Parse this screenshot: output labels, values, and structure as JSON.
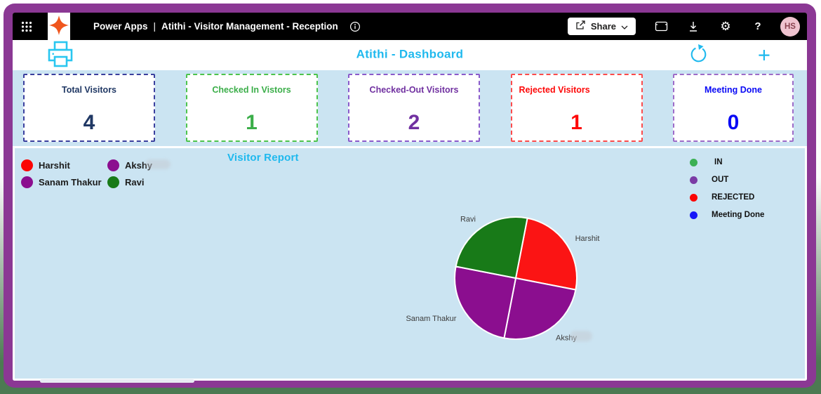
{
  "titlebar": {
    "brand": "Power Apps",
    "divider": "|",
    "app_name": "Atithi - Visitor Management - Reception",
    "share_label": "Share",
    "avatar_initials": "HS",
    "gear_glyph": "⚙",
    "help_glyph": "?"
  },
  "header": {
    "title": "Atithi - Dashboard",
    "plus_glyph": "+"
  },
  "stat_cards": [
    {
      "label": "Total Visitors",
      "value": "4",
      "color": "#203864",
      "border": "#3A3F9E",
      "align": "center"
    },
    {
      "label": "Checked In Vistors",
      "value": "1",
      "color": "#3BAE49",
      "border": "#4DC44D",
      "align": "center"
    },
    {
      "label": "Checked-Out Visitors",
      "value": "2",
      "color": "#7030A0",
      "border": "#8A5ACB",
      "align": "center"
    },
    {
      "label": "Rejected Visitors",
      "value": "1",
      "color": "#FE0808",
      "border": "#FC4B4B",
      "align": "left"
    },
    {
      "label": "Meeting Done",
      "value": "0",
      "color": "#0A0AF5",
      "border": "#9D6BC8",
      "align": "center"
    }
  ],
  "report": {
    "title": "Visitor Report",
    "legend_left": [
      {
        "label": "Harshit",
        "color": "#FB0505"
      },
      {
        "label": "Akshy",
        "color": "#8B0E8F"
      },
      {
        "label": "Sanam Thakur",
        "color": "#8B0E8F"
      },
      {
        "label": "Ravi",
        "color": "#187A18"
      }
    ],
    "legend_right": [
      {
        "label": "IN",
        "color": "#3BB054"
      },
      {
        "label": "OUT",
        "color": "#7A3BA5"
      },
      {
        "label": "REJECTED",
        "color": "#FB0505"
      },
      {
        "label": "Meeting Done",
        "color": "#1616F8"
      }
    ]
  },
  "chart_data": {
    "type": "pie",
    "title": "Visitor Report",
    "total": 4,
    "start_angle_deg": 11,
    "label_position": "outside",
    "slices": [
      {
        "label": "Harshit",
        "value": 1,
        "color": "#FB1414",
        "status": "REJECTED"
      },
      {
        "label": "Akshy",
        "value": 1,
        "color": "#8B0E8F",
        "status": "OUT"
      },
      {
        "label": "Sanam Thakur",
        "value": 1,
        "color": "#8B0E8F",
        "status": "OUT"
      },
      {
        "label": "Ravi",
        "value": 1,
        "color": "#187A18",
        "status": "IN"
      }
    ]
  },
  "accent": {
    "cyan": "#1FB9EE",
    "frame_purple": "#8B3894",
    "panel_blue": "#CBE4F2"
  }
}
